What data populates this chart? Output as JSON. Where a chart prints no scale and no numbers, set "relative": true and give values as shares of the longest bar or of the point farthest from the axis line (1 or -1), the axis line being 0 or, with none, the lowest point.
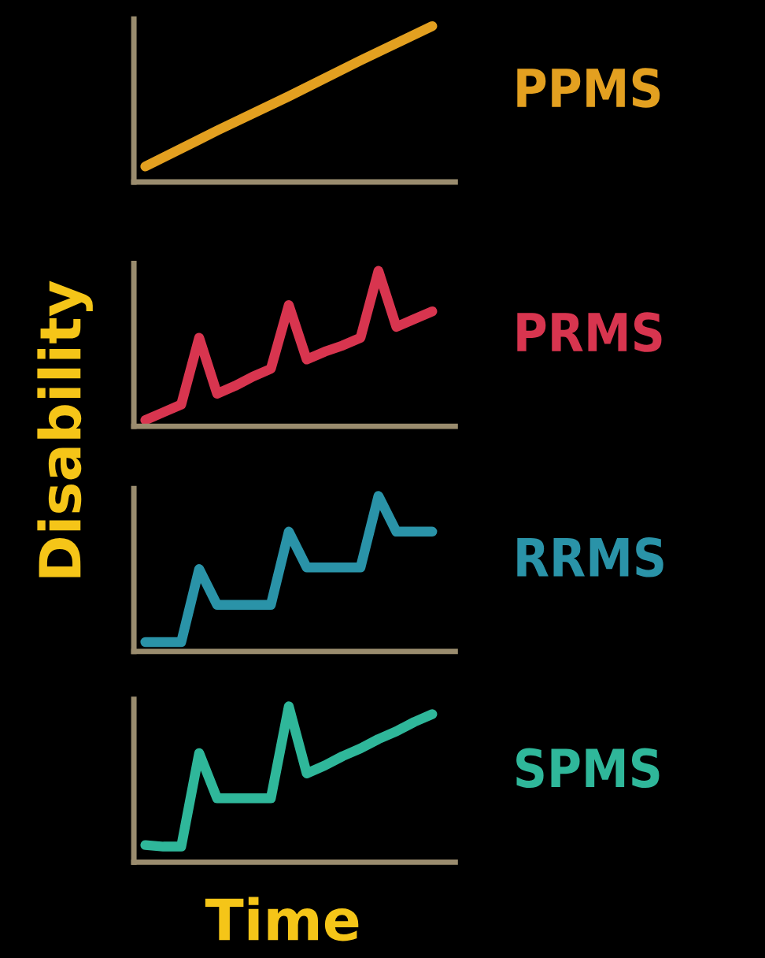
{
  "chart_data": [
    {
      "type": "line",
      "relative": true,
      "tick_labels": false,
      "marker": "none",
      "line_style": "solid",
      "categories": [
        null,
        null,
        null,
        null,
        null
      ],
      "series": [
        {
          "name": "PPMS",
          "color": "#e3a020",
          "values": [
            0.1,
            0.33,
            0.55,
            0.78,
            1
          ]
        }
      ]
    },
    {
      "type": "line",
      "relative": true,
      "tick_labels": false,
      "marker": "none",
      "line_style": "solid",
      "categories": [
        null,
        null,
        null,
        null,
        null,
        null,
        null,
        null,
        null,
        null,
        null,
        null,
        null,
        null,
        null,
        null,
        null
      ],
      "series": [
        {
          "name": "PRMS",
          "color": "#d8354f",
          "values": [
            0.04,
            0.09,
            0.14,
            0.57,
            0.21,
            0.26,
            0.32,
            0.37,
            0.78,
            0.43,
            0.48,
            0.52,
            0.57,
            1,
            0.64,
            0.69,
            0.74
          ]
        }
      ]
    },
    {
      "type": "line",
      "relative": true,
      "tick_labels": false,
      "marker": "none",
      "line_style": "solid",
      "ylabel": "Disability",
      "categories": [
        null,
        null,
        null,
        null,
        null,
        null,
        null,
        null,
        null,
        null,
        null,
        null,
        null,
        null,
        null,
        null,
        null
      ],
      "series": [
        {
          "name": "RRMS",
          "color": "#2a93a8",
          "values": [
            0.06,
            0.06,
            0.06,
            0.53,
            0.3,
            0.3,
            0.3,
            0.3,
            0.77,
            0.54,
            0.54,
            0.54,
            0.54,
            1,
            0.77,
            0.77,
            0.77
          ]
        }
      ]
    },
    {
      "type": "line",
      "relative": true,
      "tick_labels": false,
      "marker": "none",
      "line_style": "solid",
      "xlabel": "Time",
      "categories": [
        null,
        null,
        null,
        null,
        null,
        null,
        null,
        null,
        null,
        null,
        null,
        null,
        null,
        null,
        null,
        null,
        null
      ],
      "series": [
        {
          "name": "SPMS",
          "color": "#2fb79a",
          "values": [
            0.11,
            0.1,
            0.1,
            0.7,
            0.41,
            0.41,
            0.41,
            0.41,
            1,
            0.57,
            0.62,
            0.68,
            0.73,
            0.79,
            0.84,
            0.9,
            0.95
          ]
        }
      ]
    }
  ]
}
